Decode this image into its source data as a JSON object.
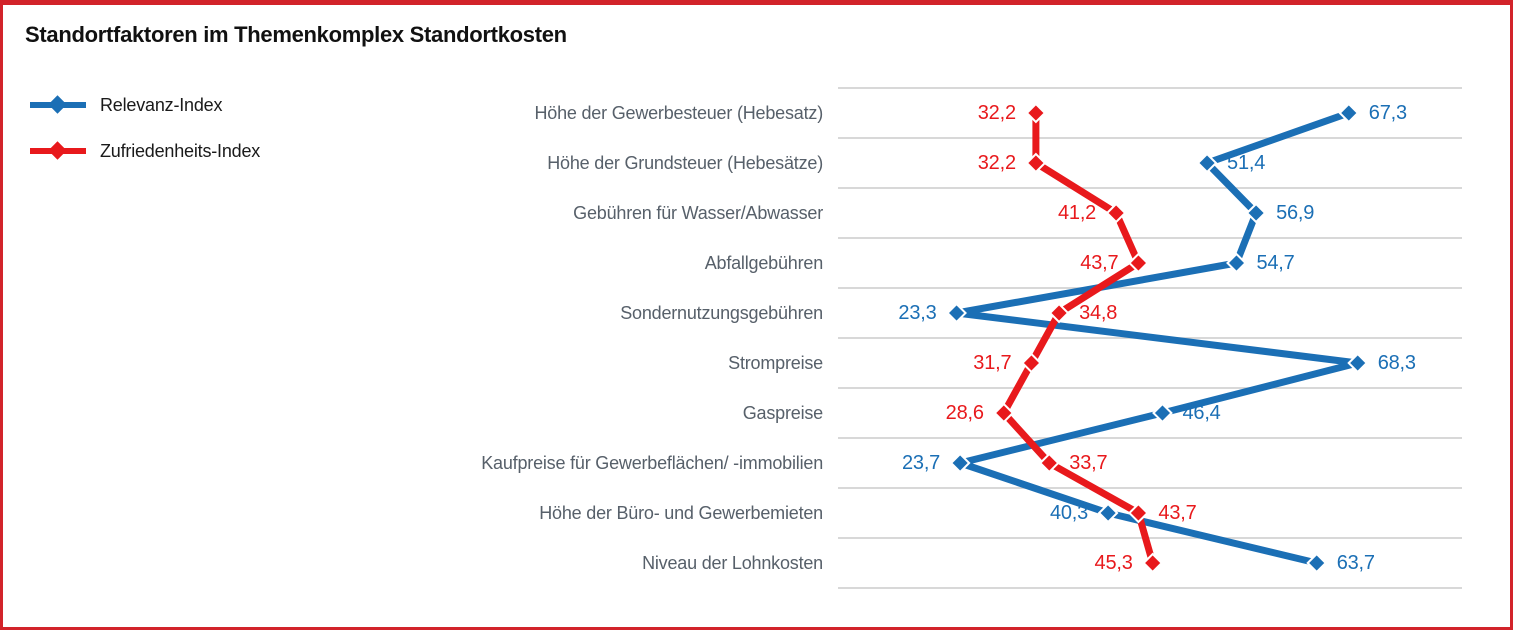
{
  "title": "Standortfaktoren im Themenkomplex Standortkosten",
  "frame_border_color": "#d2232a",
  "legend": {
    "items": [
      {
        "label": "Relevanz-Index",
        "color": "#1b6fb5"
      },
      {
        "label": "Zufriedenheits-Index",
        "color": "#e8191c"
      }
    ]
  },
  "chart_data": {
    "type": "line",
    "orientation": "horizontal-dot-line",
    "title": "Standortfaktoren im Themenkomplex Standortkosten",
    "categories": [
      "Höhe der Gewerbesteuer (Hebesatz)",
      "Höhe der Grundsteuer (Hebesätze)",
      "Gebühren für Wasser/Abwasser",
      "Abfallgebühren",
      "Sondernutzungsgebühren",
      "Strompreise",
      "Gaspreise",
      "Kaufpreise für Gewerbeflächen/ -immobilien",
      "Höhe der Büro- und Gewerbemieten",
      "Niveau der Lohnkosten"
    ],
    "series": [
      {
        "name": "Relevanz-Index",
        "color": "#1b6fb5",
        "values": [
          67.3,
          51.4,
          56.9,
          54.7,
          23.3,
          68.3,
          46.4,
          23.7,
          40.3,
          63.7
        ]
      },
      {
        "name": "Zufriedenheits-Index",
        "color": "#e8191c",
        "values": [
          32.2,
          32.2,
          41.2,
          43.7,
          34.8,
          31.7,
          28.6,
          33.7,
          43.7,
          45.3
        ]
      }
    ],
    "value_axis": {
      "min": 10,
      "max": 80,
      "ticks_visible": false
    },
    "grid": "horizontal-row-separator-lines",
    "gridline_color": "#cbcbcb",
    "category_label_color": "#57606a",
    "decimal_separator": ",",
    "legend_position": "top-left",
    "data_label_rule": "smaller value labelled left of marker, larger value labelled right"
  }
}
